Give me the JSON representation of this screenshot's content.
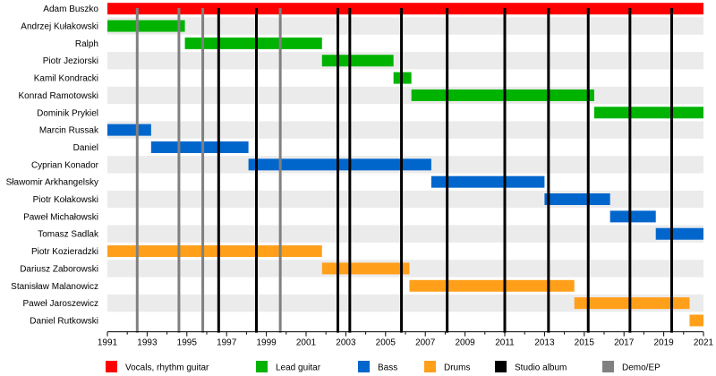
{
  "chart_data": {
    "type": "timeline",
    "x_range": [
      1991,
      2021
    ],
    "x_ticks": [
      1991,
      1993,
      1995,
      1997,
      1999,
      2001,
      2003,
      2005,
      2007,
      2009,
      2011,
      2013,
      2015,
      2017,
      2019,
      2021
    ],
    "grid": false,
    "legend_position": "bottom",
    "roles": [
      {
        "key": "vocals",
        "label": "Vocals, rhythm guitar",
        "color": "#ff0000"
      },
      {
        "key": "lead",
        "label": "Lead guitar",
        "color": "#00b300"
      },
      {
        "key": "bass",
        "label": "Bass",
        "color": "#0066cc"
      },
      {
        "key": "drums",
        "label": "Drums",
        "color": "#ff9f1a"
      }
    ],
    "event_types": [
      {
        "key": "album",
        "label": "Studio album",
        "color": "#000000"
      },
      {
        "key": "demo",
        "label": "Demo/EP",
        "color": "#808080"
      }
    ],
    "members": [
      {
        "name": "Adam Buszko",
        "role": "vocals",
        "start": 1991.0,
        "end": 2021.0
      },
      {
        "name": "Andrzej Kułakowski",
        "role": "lead",
        "start": 1991.0,
        "end": 1994.9
      },
      {
        "name": "Ralph",
        "role": "lead",
        "start": 1994.9,
        "end": 2001.8
      },
      {
        "name": "Piotr Jeziorski",
        "role": "lead",
        "start": 2001.8,
        "end": 2005.4
      },
      {
        "name": "Kamil Kondracki",
        "role": "lead",
        "start": 2005.4,
        "end": 2006.3
      },
      {
        "name": "Konrad Ramotowski",
        "role": "lead",
        "start": 2006.3,
        "end": 2015.5
      },
      {
        "name": "Dominik Prykiel",
        "role": "lead",
        "start": 2015.5,
        "end": 2021.0
      },
      {
        "name": "Marcin Russak",
        "role": "bass",
        "start": 1991.0,
        "end": 1993.2
      },
      {
        "name": "Daniel",
        "role": "bass",
        "start": 1993.2,
        "end": 1998.1
      },
      {
        "name": "Cyprian Konador",
        "role": "bass",
        "start": 1998.1,
        "end": 2007.3
      },
      {
        "name": "Sławomir Arkhangelsky",
        "role": "bass",
        "start": 2007.3,
        "end": 2013.0
      },
      {
        "name": "Piotr Kołakowski",
        "role": "bass",
        "start": 2013.0,
        "end": 2016.3
      },
      {
        "name": "Paweł Michałowski",
        "role": "bass",
        "start": 2016.3,
        "end": 2018.6
      },
      {
        "name": "Tomasz Sadlak",
        "role": "bass",
        "start": 2018.6,
        "end": 2021.0
      },
      {
        "name": "Piotr Kozieradzki",
        "role": "drums",
        "start": 1991.0,
        "end": 2001.8
      },
      {
        "name": "Dariusz Zaborowski",
        "role": "drums",
        "start": 2001.8,
        "end": 2006.2
      },
      {
        "name": "Stanisław Malanowicz",
        "role": "drums",
        "start": 2006.2,
        "end": 2014.5
      },
      {
        "name": "Paweł Jaroszewicz",
        "role": "drums",
        "start": 2014.5,
        "end": 2020.3
      },
      {
        "name": "Daniel Rutkowski",
        "role": "drums",
        "start": 2020.3,
        "end": 2021.0
      }
    ],
    "events": [
      {
        "year": 1992.5,
        "type": "demo"
      },
      {
        "year": 1994.6,
        "type": "demo"
      },
      {
        "year": 1995.8,
        "type": "demo"
      },
      {
        "year": 1996.6,
        "type": "album"
      },
      {
        "year": 1998.5,
        "type": "album"
      },
      {
        "year": 1999.7,
        "type": "demo"
      },
      {
        "year": 2002.6,
        "type": "album"
      },
      {
        "year": 2003.2,
        "type": "album"
      },
      {
        "year": 2005.8,
        "type": "album"
      },
      {
        "year": 2008.1,
        "type": "album"
      },
      {
        "year": 2011.0,
        "type": "album"
      },
      {
        "year": 2013.2,
        "type": "album"
      },
      {
        "year": 2015.2,
        "type": "album"
      },
      {
        "year": 2017.3,
        "type": "album"
      },
      {
        "year": 2019.4,
        "type": "album"
      }
    ]
  }
}
